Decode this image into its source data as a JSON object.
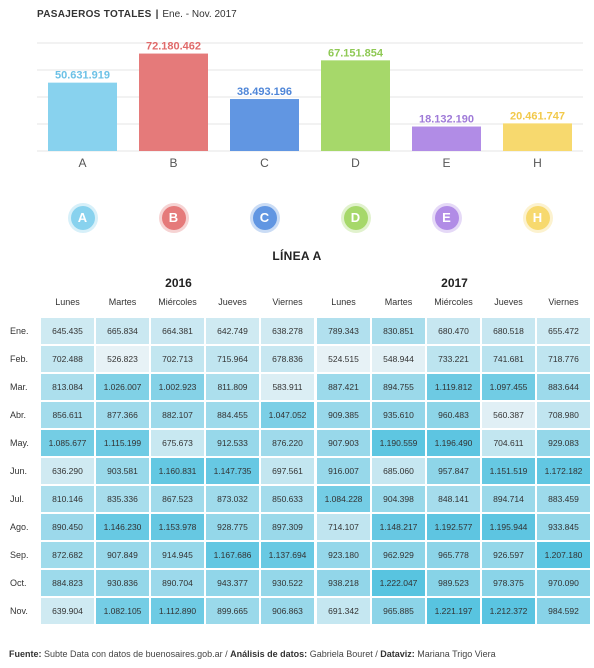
{
  "header": {
    "title": "PASAJEROS TOTALES",
    "separator": "|",
    "period": "Ene. - Nov. 2017"
  },
  "chart_data": [
    {
      "type": "bar",
      "categories": [
        "A",
        "B",
        "C",
        "D",
        "E",
        "H"
      ],
      "values": [
        50631919,
        72180462,
        38493196,
        67151854,
        18132190,
        20461747
      ],
      "value_labels": [
        "50.631.919",
        "72.180.462",
        "38.493.196",
        "67.151.854",
        "18.132.190",
        "20.461.747"
      ],
      "colors": [
        "#88d2ee",
        "#e57a7a",
        "#6196e2",
        "#a6d86a",
        "#b18ce6",
        "#f7d96e"
      ],
      "label_colors": [
        "#6cc1e6",
        "#e06a6a",
        "#4f86d8",
        "#8fc955",
        "#9f7ad8",
        "#f2c94a"
      ],
      "ylim": [
        0,
        80000000
      ],
      "grid": true
    },
    {
      "type": "heatmap",
      "title": "LÍNEA A",
      "row_labels": [
        "Ene.",
        "Feb.",
        "Mar.",
        "Abr.",
        "May.",
        "Jun.",
        "Jul.",
        "Ago.",
        "Sep.",
        "Oct.",
        "Nov."
      ],
      "column_labels": [
        "Lunes",
        "Martes",
        "Miércoles",
        "Jueves",
        "Viernes"
      ],
      "groups": [
        {
          "year": "2016",
          "values": [
            [
              "645.435",
              "665.834",
              "664.381",
              "642.749",
              "638.278"
            ],
            [
              "702.488",
              "526.823",
              "702.713",
              "715.964",
              "678.836"
            ],
            [
              "813.084",
              "1.026.007",
              "1.002.923",
              "811.809",
              "583.911"
            ],
            [
              "856.611",
              "877.366",
              "882.107",
              "884.455",
              "1.047.052"
            ],
            [
              "1.085.677",
              "1.115.199",
              "675.673",
              "912.533",
              "876.220"
            ],
            [
              "636.290",
              "903.581",
              "1.160.831",
              "1.147.735",
              "697.561"
            ],
            [
              "810.146",
              "835.336",
              "867.523",
              "873.032",
              "850.633"
            ],
            [
              "890.450",
              "1.146.230",
              "1.153.978",
              "928.775",
              "897.309"
            ],
            [
              "872.682",
              "907.849",
              "914.945",
              "1.167.686",
              "1.137.694"
            ],
            [
              "884.823",
              "930.836",
              "890.704",
              "943.377",
              "930.522"
            ],
            [
              "639.904",
              "1.082.105",
              "1.112.890",
              "899.665",
              "906.863"
            ]
          ]
        },
        {
          "year": "2017",
          "values": [
            [
              "789.343",
              "830.851",
              "680.470",
              "680.518",
              "655.472"
            ],
            [
              "524.515",
              "548.944",
              "733.221",
              "741.681",
              "718.776"
            ],
            [
              "887.421",
              "894.755",
              "1.119.812",
              "1.097.455",
              "883.644"
            ],
            [
              "909.385",
              "935.610",
              "960.483",
              "560.387",
              "708.980"
            ],
            [
              "907.903",
              "1.190.559",
              "1.196.490",
              "704.611",
              "929.083"
            ],
            [
              "916.007",
              "685.060",
              "957.847",
              "1.151.519",
              "1.172.182"
            ],
            [
              "1.084.228",
              "904.398",
              "848.141",
              "894.714",
              "883.459"
            ],
            [
              "714.107",
              "1.148.217",
              "1.192.577",
              "1.195.944",
              "933.845"
            ],
            [
              "923.180",
              "962.929",
              "965.778",
              "926.597",
              "1.207.180"
            ],
            [
              "938.218",
              "1.222.047",
              "989.523",
              "978.375",
              "970.090"
            ],
            [
              "691.342",
              "965.885",
              "1.221.197",
              "1.212.372",
              "984.592"
            ]
          ]
        }
      ],
      "scale": {
        "min": 520000,
        "max": 1230000,
        "low_color": "#e8f2f6",
        "high_color": "#56c3e0"
      }
    }
  ],
  "footer": {
    "source_label": "Fuente:",
    "source_text": "Subte Data con datos de buenosaires.gob.ar / ",
    "analysis_label": "Análisis de datos:",
    "analysis_text": "Gabriela Bouret / ",
    "dataviz_label": "Dataviz:",
    "dataviz_text": "Mariana Trigo Viera"
  }
}
